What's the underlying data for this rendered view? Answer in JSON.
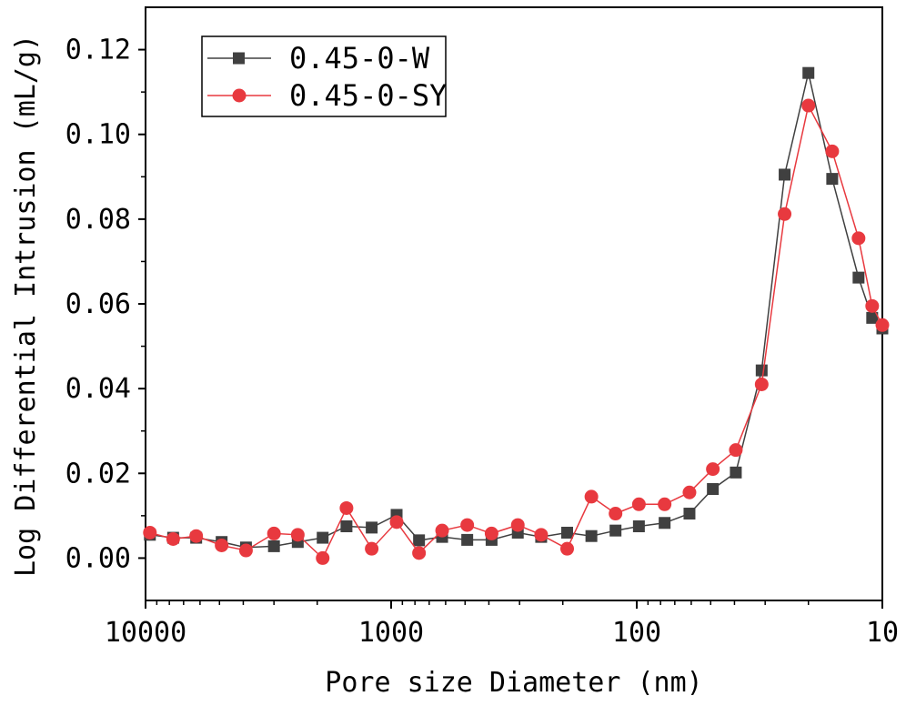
{
  "chart_data": {
    "type": "line",
    "title": "",
    "xlabel": "Pore size Diameter (nm)",
    "ylabel": "Log Differential Intrusion (mL/g)",
    "xscale": "log",
    "x_reversed": true,
    "xlim": [
      10000,
      10
    ],
    "ylim": [
      -0.01,
      0.13
    ],
    "x_ticks": [
      10000,
      1000,
      100,
      10
    ],
    "x_tick_labels": [
      "10000",
      "1000",
      "100",
      "10"
    ],
    "y_ticks": [
      0.0,
      0.02,
      0.04,
      0.06,
      0.08,
      0.1,
      0.12
    ],
    "y_tick_labels": [
      "0.00",
      "0.02",
      "0.04",
      "0.06",
      "0.08",
      "0.10",
      "0.12"
    ],
    "legend_position": "top-left",
    "series": [
      {
        "name": "0.45-0-W",
        "color": "#404040",
        "marker": "square",
        "x": [
          9600,
          7720,
          6220,
          4900,
          3900,
          3000,
          2400,
          1900,
          1520,
          1200,
          950,
          770,
          620,
          490,
          390,
          305,
          245,
          192,
          153,
          122,
          98,
          77,
          61,
          49,
          39.5,
          31,
          25,
          20,
          16,
          12.5,
          11,
          10
        ],
        "y": [
          0.0055,
          0.0048,
          0.0048,
          0.0038,
          0.0025,
          0.0028,
          0.0038,
          0.0048,
          0.0075,
          0.0072,
          0.0102,
          0.0042,
          0.005,
          0.0043,
          0.0043,
          0.006,
          0.005,
          0.006,
          0.0052,
          0.0065,
          0.0075,
          0.0083,
          0.0105,
          0.0163,
          0.0202,
          0.0443,
          0.0905,
          0.1145,
          0.0895,
          0.0662,
          0.0567,
          0.0542
        ]
      },
      {
        "name": "0.45-0-SY",
        "color": "#e8393f",
        "marker": "circle",
        "x": [
          9600,
          7720,
          6220,
          4900,
          3900,
          3000,
          2400,
          1900,
          1520,
          1200,
          950,
          770,
          620,
          490,
          390,
          305,
          245,
          192,
          153,
          122,
          98,
          77,
          61,
          49,
          39.5,
          31,
          25,
          20,
          16,
          12.5,
          11,
          10
        ],
        "y": [
          0.006,
          0.0045,
          0.0052,
          0.003,
          0.0018,
          0.0058,
          0.0055,
          0.0,
          0.0118,
          0.0022,
          0.0085,
          0.0012,
          0.0065,
          0.0078,
          0.0058,
          0.0078,
          0.0055,
          0.0022,
          0.0145,
          0.0105,
          0.0127,
          0.0127,
          0.0155,
          0.021,
          0.0255,
          0.041,
          0.0812,
          0.1068,
          0.096,
          0.0755,
          0.0595,
          0.055
        ]
      }
    ]
  }
}
